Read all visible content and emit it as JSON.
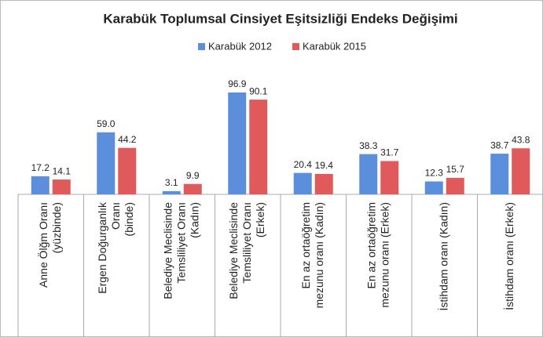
{
  "chart_data": {
    "type": "bar",
    "title": "Karabük Toplumsal Cinsiyet Eşitsizliği Endeks Değişimi",
    "categories": [
      [
        "Anne Ölğm Oranı",
        "(yüzbinde)"
      ],
      [
        "Ergen Doğurganlık",
        "Oranı",
        "(binde)"
      ],
      [
        "Belediye Meclisinde",
        "Temsliliyet Oranı",
        "(Kadın)"
      ],
      [
        "Belediye Meclisinde",
        "Temsliliyet Oranı",
        "(Erkek)"
      ],
      [
        "En az ortaöğretim",
        "mezunu oranı (Kadın)"
      ],
      [
        "En az ortaöğretim",
        "mezunu oranı (Erkek)"
      ],
      [
        "İstihdam oranı (Kadın)"
      ],
      [
        "İstihdam oranı (Erkek)"
      ]
    ],
    "series": [
      {
        "name": "Karabük 2012",
        "color": "#5b8fdc",
        "values": [
          17.2,
          59.0,
          3.1,
          96.9,
          20.4,
          38.3,
          12.3,
          38.7
        ],
        "value_labels": [
          "17.2",
          "59.0",
          "3.1",
          "96.9",
          "20.4",
          "38.3",
          "12.3",
          "38.7"
        ]
      },
      {
        "name": "Karabük 2015",
        "color": "#e0595b",
        "values": [
          14.1,
          44.2,
          9.9,
          90.1,
          19.4,
          31.7,
          15.7,
          43.8
        ],
        "value_labels": [
          "14.1",
          "44.2",
          "9.9",
          "90.1",
          "19.4",
          "31.7",
          "15.7",
          "43.8"
        ]
      }
    ],
    "legend": "top"
  }
}
